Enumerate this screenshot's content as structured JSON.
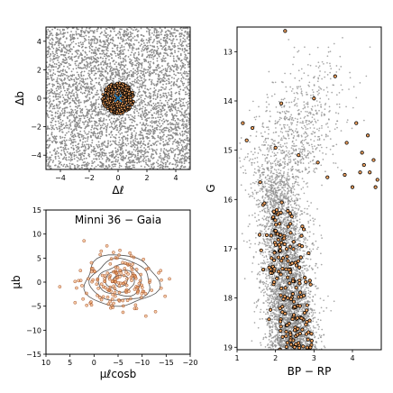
{
  "colors": {
    "field": "#8a8a8a",
    "member_fill": "#f4a460",
    "member_edge": "#000000",
    "center": "#1f77b4",
    "contour": "#555555"
  },
  "chart_data": [
    {
      "id": "sky",
      "type": "scatter",
      "xlabel": "Δℓ",
      "ylabel": "Δb",
      "xlim": [
        -5,
        5
      ],
      "ylim": [
        -5,
        5
      ],
      "xticks": [
        "−4",
        "−2",
        "0",
        "2",
        "4"
      ],
      "xtick_values": [
        -4,
        -2,
        0,
        2,
        4
      ],
      "yticks": [
        "−4",
        "−2",
        "0",
        "2",
        "4"
      ],
      "ytick_values": [
        -4,
        -2,
        0,
        2,
        4
      ],
      "series": [
        {
          "role": "field stars",
          "distribution": "uniform",
          "count": 4200
        },
        {
          "role": "cluster members",
          "distribution": "disk",
          "center": [
            0,
            0
          ],
          "radius": 1.1,
          "count": 420
        },
        {
          "role": "cluster center",
          "x": [
            0
          ],
          "y": [
            0
          ]
        }
      ]
    },
    {
      "id": "proper-motion",
      "type": "scatter",
      "title": "Minni 36  −  Gaia",
      "xlabel": "μℓcosb",
      "ylabel": "μb",
      "xlim": [
        10,
        -20
      ],
      "ylim": [
        -15,
        15
      ],
      "xticks": [
        "10",
        "5",
        "0",
        "−5",
        "−10",
        "−15",
        "−20"
      ],
      "xtick_values": [
        10,
        5,
        0,
        -5,
        -10,
        -15,
        -20
      ],
      "yticks": [
        "−15",
        "−10",
        "−5",
        "0",
        "5",
        "10",
        "15"
      ],
      "ytick_values": [
        -15,
        -10,
        -5,
        0,
        5,
        10,
        15
      ],
      "series": [
        {
          "role": "members",
          "distribution": "gaussian",
          "center": [
            -5.5,
            0.3
          ],
          "sigma": [
            4.0,
            3.0
          ],
          "count": 170
        },
        {
          "role": "density contours",
          "center": [
            -5.5,
            0.3
          ],
          "radii": [
            [
              1.5,
              1.2
            ],
            [
              3.0,
              2.2
            ],
            [
              4.5,
              3.2
            ],
            [
              6.2,
              4.3
            ],
            [
              7.6,
              5.3
            ]
          ]
        }
      ]
    },
    {
      "id": "cmd",
      "type": "scatter",
      "xlabel": "BP − RP",
      "ylabel": "G",
      "xlim": [
        1.0,
        4.75
      ],
      "ylim": [
        19.05,
        12.5
      ],
      "xticks": [
        "1",
        "2",
        "3",
        "4"
      ],
      "xtick_values": [
        1,
        2,
        3,
        4
      ],
      "yticks": [
        "13",
        "14",
        "15",
        "16",
        "17",
        "18",
        "19"
      ],
      "ytick_values": [
        13,
        14,
        15,
        16,
        17,
        18,
        19
      ],
      "series": [
        {
          "role": "field stars",
          "count": 5200
        },
        {
          "role": "members",
          "count": 210,
          "bright_x": [
            2.25,
            3.55,
            3.0,
            1.15,
            4.1,
            4.4,
            1.4,
            2.0,
            3.85,
            4.25,
            1.25,
            4.3,
            4.55,
            3.35,
            3.8,
            4.2,
            4.45,
            1.6,
            4.65,
            3.1,
            2.6,
            4.0,
            4.6,
            2.15
          ],
          "bright_y": [
            12.58,
            13.5,
            13.95,
            14.45,
            14.45,
            14.7,
            14.55,
            14.95,
            14.85,
            15.05,
            14.8,
            15.3,
            15.2,
            15.55,
            15.5,
            15.45,
            15.45,
            15.65,
            15.6,
            15.25,
            15.1,
            15.75,
            15.75,
            14.05
          ]
        }
      ]
    }
  ]
}
